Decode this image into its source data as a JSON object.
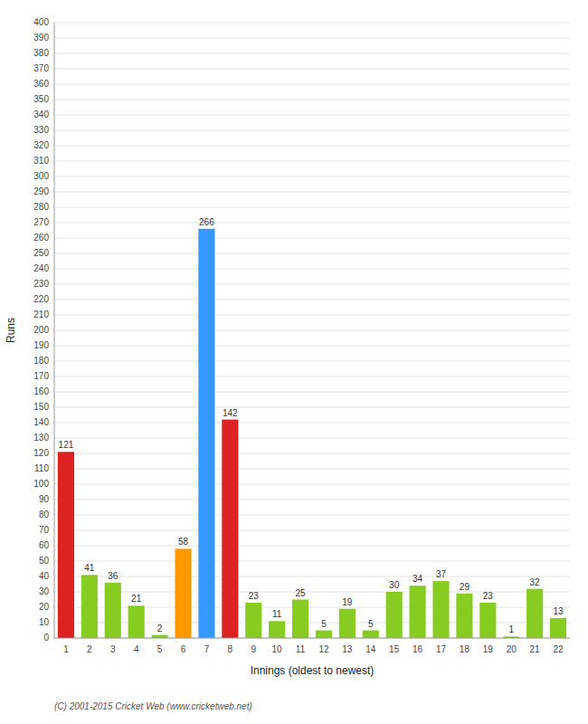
{
  "chart_data": {
    "type": "bar",
    "xlabel": "Innings (oldest to newest)",
    "ylabel": "Runs",
    "categories": [
      1,
      2,
      3,
      4,
      5,
      6,
      7,
      8,
      9,
      10,
      11,
      12,
      13,
      14,
      15,
      16,
      17,
      18,
      19,
      20,
      21,
      22
    ],
    "values": [
      121,
      41,
      36,
      21,
      2,
      58,
      266,
      142,
      23,
      11,
      25,
      5,
      19,
      5,
      30,
      34,
      37,
      29,
      23,
      1,
      32,
      13
    ],
    "colors": [
      "#dd2222",
      "#88cc22",
      "#88cc22",
      "#88cc22",
      "#88cc22",
      "#ff9900",
      "#3399ff",
      "#dd2222",
      "#88cc22",
      "#88cc22",
      "#88cc22",
      "#88cc22",
      "#88cc22",
      "#88cc22",
      "#88cc22",
      "#88cc22",
      "#88cc22",
      "#88cc22",
      "#88cc22",
      "#88cc22",
      "#88cc22",
      "#88cc22"
    ],
    "ylim": [
      0,
      400
    ],
    "yticks": [
      0,
      10,
      20,
      30,
      40,
      50,
      60,
      70,
      80,
      90,
      100,
      110,
      120,
      130,
      140,
      150,
      160,
      170,
      180,
      190,
      200,
      210,
      220,
      230,
      240,
      250,
      260,
      270,
      280,
      290,
      300,
      310,
      320,
      330,
      340,
      350,
      360,
      370,
      380,
      390,
      400
    ],
    "grid": true,
    "data_labels": true,
    "annotations": [
      "(C) 2001-2015 Cricket Web (www.cricketweb.net)"
    ]
  }
}
